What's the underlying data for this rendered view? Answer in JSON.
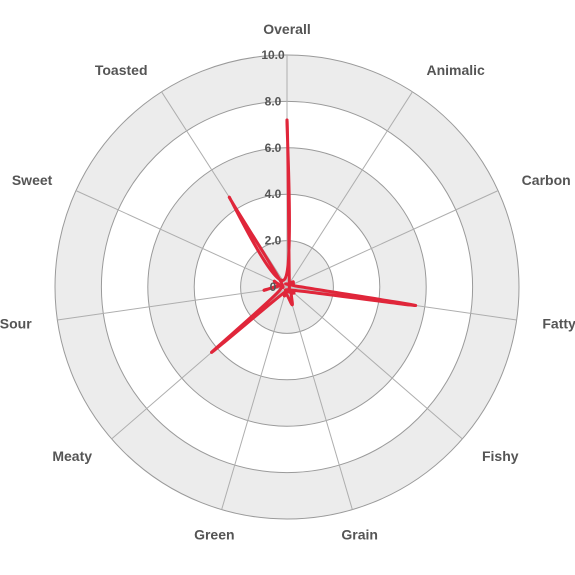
{
  "chart_data": {
    "type": "radar",
    "axes": [
      "Overall",
      "Animalic",
      "Carbon",
      "Fatty",
      "Fishy",
      "Grain",
      "Green",
      "Meaty",
      "Sour",
      "Sweet",
      "Toasted"
    ],
    "ticks": [
      "0",
      "2.0",
      "4.0",
      "6.0",
      "8.0",
      "10.0"
    ],
    "rlim": [
      0,
      10
    ],
    "series": [
      {
        "values": [
          7.2,
          0.2,
          0.3,
          5.6,
          0.4,
          0.8,
          0.4,
          4.3,
          1.0,
          0.6,
          4.6
        ],
        "color": "#e0263a"
      }
    ],
    "grid": true
  }
}
